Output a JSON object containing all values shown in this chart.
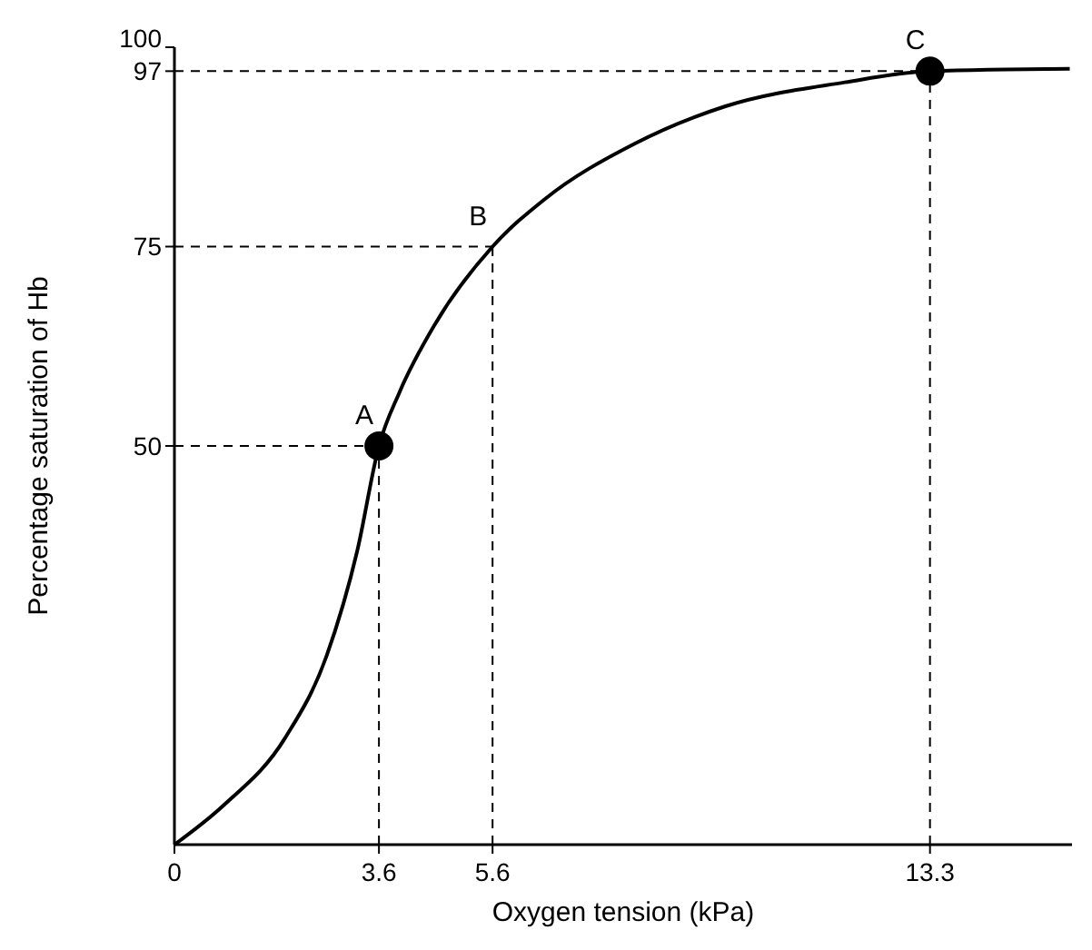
{
  "chart_data": {
    "type": "line",
    "xlabel": "Oxygen tension (kPa)",
    "ylabel": "Percentage saturation of Hb",
    "xlim": [
      0,
      15.8
    ],
    "ylim": [
      0,
      100
    ],
    "xticks": [
      0,
      3.6,
      5.6,
      13.3
    ],
    "yticks": [
      50,
      75,
      97,
      100
    ],
    "series": [
      {
        "color": "#000000",
        "marker": "none",
        "line_style": "solid",
        "x": [
          0,
          0.86,
          1.95,
          2.68,
          3.22,
          3.6,
          3.96,
          4.59,
          5.6,
          6.51,
          8.1,
          9.7,
          11.8,
          13.3,
          15.76
        ],
        "values": [
          0,
          4.9,
          13.4,
          23.7,
          36.9,
          50,
          56.7,
          65.3,
          75,
          80.9,
          87.9,
          92.6,
          95.6,
          97,
          97.3
        ]
      },
      {
        "type": "scatter",
        "color": "#000000",
        "marker": "circle",
        "x": [
          3.6,
          13.3
        ],
        "values": [
          50,
          97
        ]
      }
    ],
    "ref_lines": [
      {
        "axis": "x",
        "value": 3.6,
        "line_style": "dashed"
      },
      {
        "axis": "x",
        "value": 5.6,
        "line_style": "dashed"
      },
      {
        "axis": "x",
        "value": 13.3,
        "line_style": "dashed"
      },
      {
        "axis": "y",
        "value": 50,
        "line_style": "dashed"
      },
      {
        "axis": "y",
        "value": 75,
        "line_style": "dashed"
      },
      {
        "axis": "y",
        "value": 97,
        "line_style": "dashed"
      }
    ],
    "annotations": [
      {
        "text": "A",
        "x": 3.6,
        "y": 50
      },
      {
        "text": "B",
        "x": 5.6,
        "y": 75
      },
      {
        "text": "C",
        "x": 13.3,
        "y": 97
      }
    ]
  }
}
